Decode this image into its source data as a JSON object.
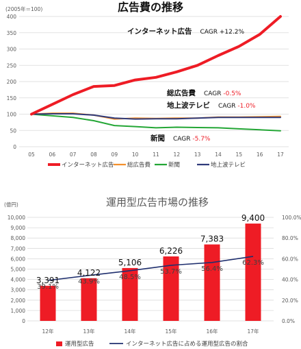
{
  "chart_data": [
    {
      "type": "line",
      "title": "広告費の推移",
      "unit_note": "(2005年＝100)",
      "categories": [
        "05",
        "06",
        "07",
        "08",
        "09",
        "10",
        "11",
        "12",
        "13",
        "14",
        "15",
        "16",
        "17"
      ],
      "ylim": [
        0,
        400
      ],
      "yticks": [
        0,
        50,
        100,
        150,
        200,
        250,
        300,
        350,
        400
      ],
      "grid": true,
      "legend_position": "bottom",
      "series": [
        {
          "name": "インターネット広告",
          "color": "#ee1c25",
          "width": 4,
          "values": [
            100,
            130,
            160,
            185,
            188,
            205,
            213,
            230,
            250,
            280,
            308,
            345,
            400
          ]
        },
        {
          "name": "総広告費",
          "color": "#f4902c",
          "width": 2,
          "values": [
            100,
            103,
            103,
            97,
            85,
            88,
            87,
            88,
            88,
            91,
            91,
            92,
            93
          ]
        },
        {
          "name": "新聞",
          "color": "#23a635",
          "width": 2,
          "values": [
            100,
            95,
            90,
            80,
            65,
            62,
            58,
            60,
            59,
            58,
            55,
            52,
            49
          ]
        },
        {
          "name": "地上波テレビ",
          "color": "#2f3a7a",
          "width": 2,
          "values": [
            100,
            101,
            101,
            97,
            88,
            85,
            86,
            86,
            88,
            90,
            90,
            90,
            90
          ]
        }
      ],
      "annotations": [
        {
          "label": "インターネット広告",
          "cagr_prefix": "CAGR ",
          "cagr_value": "+12.2%",
          "cagr_color": "#111111"
        },
        {
          "label": "総広告費",
          "cagr_prefix": "CAGR ",
          "cagr_value": "-0.5%",
          "cagr_color": "#ee1c25"
        },
        {
          "label": "地上波テレビ",
          "cagr_prefix": "CAGR ",
          "cagr_value": "-1.0%",
          "cagr_color": "#ee1c25"
        },
        {
          "label": "新聞",
          "cagr_prefix": "CAGR ",
          "cagr_value": "-5.7%",
          "cagr_color": "#ee1c25"
        }
      ]
    },
    {
      "type": "bar",
      "title": "運用型広告市場の推移",
      "unit_note": "(億円)",
      "categories": [
        "12年",
        "13年",
        "14年",
        "15年",
        "16年",
        "17年"
      ],
      "ylim": [
        0,
        10000
      ],
      "yticks": [
        "0",
        "1,000",
        "2,000",
        "3,000",
        "4,000",
        "5,000",
        "6,000",
        "7,000",
        "8,000",
        "9,000",
        "10,000"
      ],
      "y2lim": [
        0,
        100
      ],
      "y2ticks": [
        "0.0%",
        "20.0%",
        "40.0%",
        "60.0%",
        "80.0%",
        "100.0%"
      ],
      "grid": true,
      "legend_position": "bottom",
      "series": [
        {
          "name": "運用型広告",
          "color": "#ee1c25",
          "values": [
            3391,
            4122,
            5106,
            6226,
            7383,
            9400
          ],
          "labels": [
            "3,391",
            "4,122",
            "5,106",
            "6,226",
            "7,383",
            "9,400"
          ]
        },
        {
          "name": "インターネット広告に占める運用型広告の割合",
          "color": "#1f2f6e",
          "axis": "right",
          "values": [
            39.1,
            43.9,
            48.5,
            53.7,
            56.4,
            62.3
          ],
          "labels": [
            "39.1%",
            "43.9%",
            "48.5%",
            "53.7%",
            "56.4%",
            "62.3%"
          ]
        }
      ]
    }
  ]
}
